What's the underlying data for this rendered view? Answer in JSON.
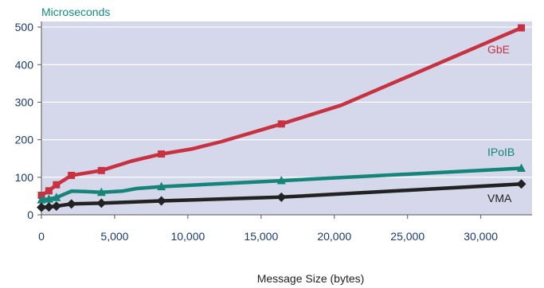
{
  "chart_data": {
    "type": "line",
    "ylabel": "Microseconds",
    "xlabel_main": "Message Size",
    "xlabel_unit": " (bytes)",
    "xlim": [
      0,
      33500
    ],
    "ylim": [
      0,
      515
    ],
    "x_ticks": [
      0,
      5000,
      10000,
      15000,
      20000,
      25000,
      30000
    ],
    "x_tick_labels": [
      "0",
      "5,000",
      "10,000",
      "15,000",
      "20,000",
      "25,000",
      "30,000"
    ],
    "y_ticks": [
      0,
      100,
      200,
      300,
      400,
      500
    ],
    "y_tick_labels": [
      "0",
      "100",
      "200",
      "300",
      "400",
      "500"
    ],
    "grid": "horizontal",
    "series": [
      {
        "name": "GbE",
        "color": "#c8313f",
        "marker": "square",
        "line": [
          [
            0,
            52
          ],
          [
            512,
            64
          ],
          [
            1024,
            80
          ],
          [
            2048,
            105
          ],
          [
            4096,
            118
          ],
          [
            6144,
            143
          ],
          [
            8192,
            162
          ],
          [
            10240,
            175
          ],
          [
            12288,
            195
          ],
          [
            16384,
            242
          ],
          [
            20480,
            292
          ],
          [
            32768,
            498
          ]
        ],
        "markers": [
          [
            0,
            52
          ],
          [
            512,
            64
          ],
          [
            1024,
            80
          ],
          [
            2048,
            105
          ],
          [
            4096,
            118
          ],
          [
            8192,
            162
          ],
          [
            16384,
            242
          ],
          [
            32768,
            498
          ]
        ]
      },
      {
        "name": "IPoIB",
        "color": "#15857a",
        "marker": "triangle",
        "line": [
          [
            0,
            40
          ],
          [
            512,
            42
          ],
          [
            1024,
            46
          ],
          [
            2048,
            63
          ],
          [
            3000,
            62
          ],
          [
            4096,
            60
          ],
          [
            5500,
            63
          ],
          [
            6500,
            70
          ],
          [
            8192,
            75
          ],
          [
            16384,
            91
          ],
          [
            32768,
            124
          ]
        ],
        "markers": [
          [
            0,
            40
          ],
          [
            512,
            42
          ],
          [
            1024,
            46
          ],
          [
            4096,
            60
          ],
          [
            8192,
            75
          ],
          [
            16384,
            91
          ],
          [
            32768,
            124
          ]
        ]
      },
      {
        "name": "VMA",
        "color": "#222222",
        "marker": "diamond",
        "line": [
          [
            0,
            20
          ],
          [
            512,
            21
          ],
          [
            1024,
            23
          ],
          [
            2048,
            29
          ],
          [
            4096,
            31
          ],
          [
            8192,
            37
          ],
          [
            16384,
            47
          ],
          [
            32768,
            82
          ]
        ],
        "markers": [
          [
            0,
            20
          ],
          [
            512,
            21
          ],
          [
            1024,
            23
          ],
          [
            2048,
            29
          ],
          [
            4096,
            31
          ],
          [
            8192,
            37
          ],
          [
            16384,
            47
          ],
          [
            32768,
            82
          ]
        ]
      }
    ],
    "labels": [
      {
        "text": "GbE",
        "series": 0
      },
      {
        "text": "IPoIB",
        "series": 1
      },
      {
        "text": "VMA",
        "series": 2
      }
    ]
  }
}
